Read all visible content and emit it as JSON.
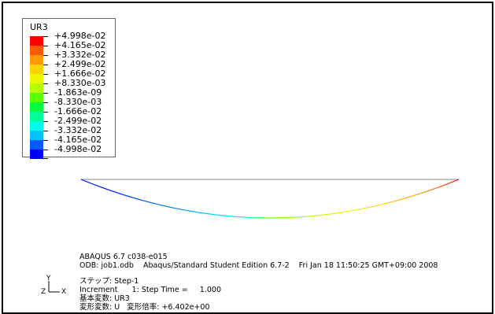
{
  "legend": {
    "title": "UR3",
    "items": [
      {
        "label": "+4.998e-02",
        "color": "#ff0000"
      },
      {
        "label": "+4.165e-02",
        "color": "#ff5a00"
      },
      {
        "label": "+3.332e-02",
        "color": "#ff9b00"
      },
      {
        "label": "+2.499e-02",
        "color": "#ffd200"
      },
      {
        "label": "+1.666e-02",
        "color": "#edf700"
      },
      {
        "label": "+8.330e-03",
        "color": "#b4ff00"
      },
      {
        "label": "-1.863e-09",
        "color": "#5cff00"
      },
      {
        "label": "-8.330e-03",
        "color": "#00ff3c"
      },
      {
        "label": "-1.666e-02",
        "color": "#00ff9b"
      },
      {
        "label": "-2.499e-02",
        "color": "#00ffe8"
      },
      {
        "label": "-3.332e-02",
        "color": "#00c3ff"
      },
      {
        "label": "-4.165e-02",
        "color": "#005aff"
      },
      {
        "label": "-4.998e-02",
        "color": "#0000ff"
      }
    ]
  },
  "info": {
    "version": "ABAQUS 6.7 c038-e015",
    "odb": "ODB: job1.odb    Abaqus/Standard Student Edition 6.7-2    Fri Jan 18 11:50:25 GMT+09:00 2008",
    "step": "ステップ: Step-1",
    "increment": "Increment      1: Step Time =     1.000",
    "primary_var": "基本変数: UR3",
    "deformed_var": "変形変数: U   変形倍率: +6.402e+00"
  },
  "triad": {
    "y_label": "Y",
    "z_label": "Z",
    "x_label": "X"
  }
}
